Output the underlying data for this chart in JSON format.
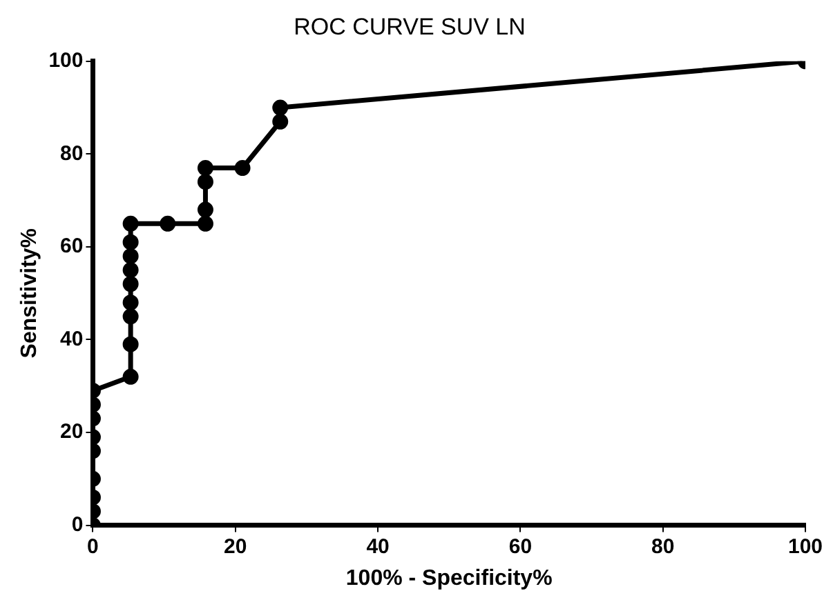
{
  "chart_data": {
    "type": "line",
    "title": "ROC CURVE SUV LN",
    "xlabel": "100% - Specificity%",
    "ylabel": "Sensitivity%",
    "series": [
      {
        "color": "#000000",
        "x": [
          0,
          0,
          0,
          0,
          0,
          0,
          0,
          0,
          0,
          5.3,
          5.3,
          5.3,
          5.3,
          5.3,
          5.3,
          5.3,
          5.3,
          5.3,
          10.5,
          15.8,
          15.8,
          15.8,
          15.8,
          21,
          26.3,
          26.3,
          100
        ],
        "values": [
          0,
          3,
          6,
          10,
          16,
          19,
          23,
          26,
          29,
          32,
          39,
          45,
          48,
          52,
          55,
          58,
          61,
          65,
          65,
          65,
          68,
          74,
          77,
          77,
          87,
          90,
          100
        ]
      }
    ],
    "xlim": [
      0,
      100
    ],
    "ylim": [
      0,
      100
    ],
    "xticks": [
      0,
      20,
      40,
      60,
      80,
      100
    ],
    "yticks": [
      0,
      20,
      40,
      60,
      80,
      100
    ],
    "grid": false,
    "legend": false,
    "marker": "circle",
    "line_style": "solid"
  }
}
